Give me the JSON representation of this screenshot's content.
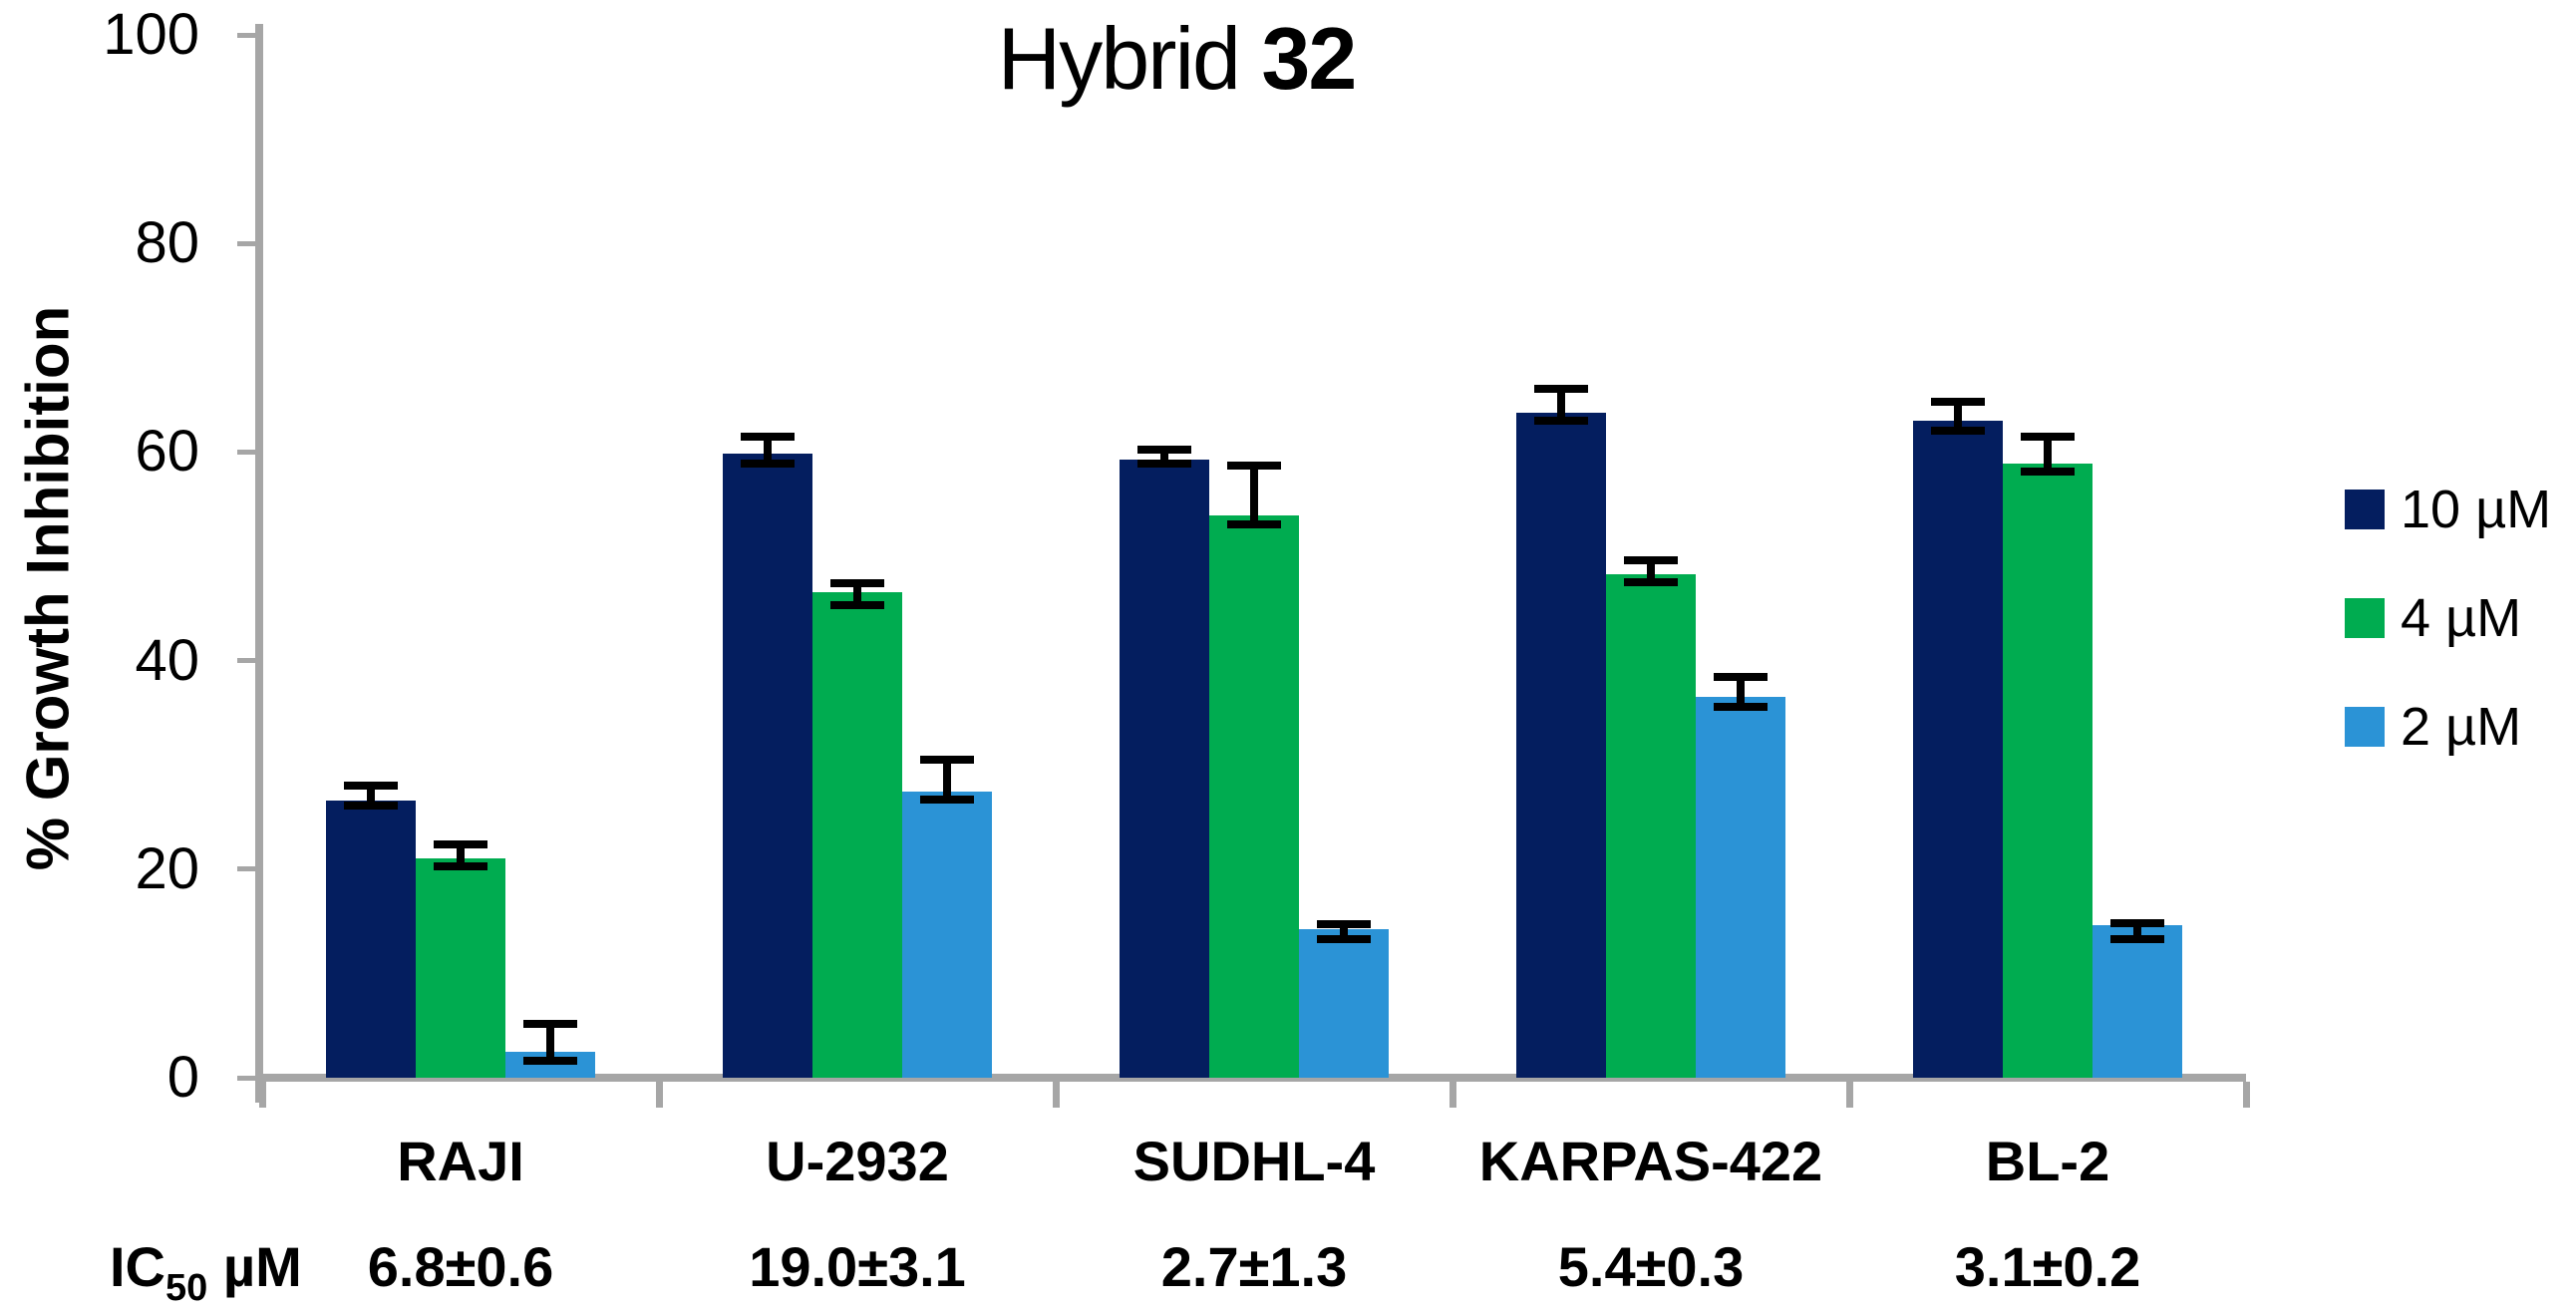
{
  "title": {
    "prefix": "Hybrid ",
    "bold": "32"
  },
  "axes": {
    "y_label": "% Growth Inhibition",
    "y_ticks": [
      0,
      20,
      40,
      60,
      80,
      100
    ],
    "y_max": 100
  },
  "legend": [
    {
      "label": "10 µM",
      "color": "#041E5F"
    },
    {
      "label": "4 µM",
      "color": "#00AC50"
    },
    {
      "label": "2 µM",
      "color": "#2B93D6"
    }
  ],
  "ic50_row": {
    "prefix": "IC",
    "sub": "50",
    "unit": " µM",
    "values": [
      "6.8±0.6",
      "19.0±3.1",
      "2.7±1.3",
      "5.4±0.3",
      "3.1±0.2"
    ]
  },
  "chart_data": {
    "type": "bar",
    "title": "Hybrid 32",
    "xlabel": "",
    "ylabel": "% Growth Inhibition",
    "ylim": [
      0,
      100
    ],
    "yticks": [
      0,
      20,
      40,
      60,
      80,
      100
    ],
    "grid": false,
    "legend_position": "right-center",
    "error_bars": true,
    "categories": [
      "RAJI",
      "U-2932",
      "SUDHL-4",
      "KARPAS-422",
      "BL-2"
    ],
    "series": [
      {
        "name": "10 µM",
        "color": "#041E5F",
        "values": [
          26.6,
          59.8,
          59.3,
          63.8,
          63.0
        ],
        "err_up": [
          1.8,
          2.1,
          1.3,
          2.6,
          2.2
        ],
        "err_down": [
          0.9,
          1.3,
          0.8,
          1.2,
          1.3
        ]
      },
      {
        "name": "4 µM",
        "color": "#00AC50",
        "values": [
          21.0,
          46.6,
          53.9,
          48.3,
          58.9
        ],
        "err_up": [
          1.8,
          1.2,
          5.2,
          1.7,
          3.0
        ],
        "err_down": [
          1.1,
          1.7,
          1.2,
          1.2,
          1.2
        ]
      },
      {
        "name": "2 µM",
        "color": "#2B93D6",
        "values": [
          2.5,
          27.4,
          14.2,
          36.5,
          14.6
        ],
        "err_up": [
          3.0,
          3.5,
          0.9,
          2.3,
          0.6
        ],
        "err_down": [
          1.3,
          1.1,
          1.3,
          1.3,
          1.7
        ]
      }
    ],
    "ic50_uM": [
      "6.8±0.6",
      "19.0±3.1",
      "2.7±1.3",
      "5.4±0.3",
      "3.1±0.2"
    ]
  }
}
